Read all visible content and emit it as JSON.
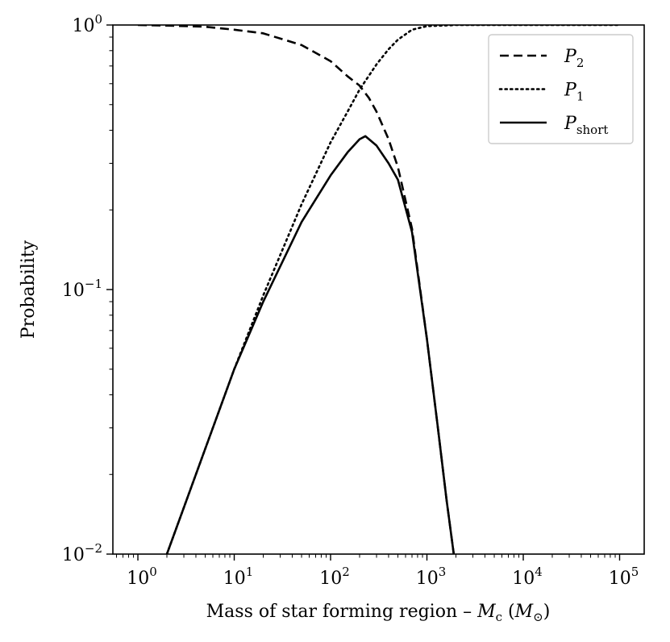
{
  "chart_data": {
    "type": "line",
    "title": "",
    "xlabel": "Mass of star forming region – Mc (M⊙)",
    "xlabel_parts": {
      "prefix": "Mass of star forming region – ",
      "symbol": "M",
      "symbol_sub": "c",
      "unit_open": " (",
      "unit_symbol": "M",
      "unit_sub": "⊙",
      "unit_close": ")"
    },
    "ylabel": "Probability",
    "xscale": "log",
    "yscale": "log",
    "xlim": [
      0.55,
      180000
    ],
    "ylim": [
      0.01,
      1
    ],
    "x_ticks": [
      {
        "value": 1,
        "base": "10",
        "exp": "0"
      },
      {
        "value": 10,
        "base": "10",
        "exp": "1"
      },
      {
        "value": 100,
        "base": "10",
        "exp": "2"
      },
      {
        "value": 1000,
        "base": "10",
        "exp": "3"
      },
      {
        "value": 10000,
        "base": "10",
        "exp": "4"
      },
      {
        "value": 100000,
        "base": "10",
        "exp": "5"
      }
    ],
    "y_ticks": [
      {
        "value": 0.01,
        "base": "10",
        "exp": "−2"
      },
      {
        "value": 0.1,
        "base": "10",
        "exp": "−1"
      },
      {
        "value": 1,
        "base": "10",
        "exp": "0"
      }
    ],
    "grid": false,
    "legend_position": "top-right",
    "series": [
      {
        "name": "P2",
        "label_base": "P",
        "label_sub": "2",
        "style": "dashed",
        "color": "#000000",
        "x": [
          1,
          2,
          5,
          10,
          20,
          50,
          100,
          150,
          200,
          250,
          300,
          400,
          500,
          700,
          1000,
          1300,
          1600,
          1900
        ],
        "y": [
          1.0,
          0.995,
          0.985,
          0.96,
          0.93,
          0.84,
          0.73,
          0.64,
          0.59,
          0.53,
          0.47,
          0.37,
          0.29,
          0.17,
          0.065,
          0.03,
          0.016,
          0.01
        ]
      },
      {
        "name": "P1",
        "label_base": "P",
        "label_sub": "1",
        "style": "dotted",
        "color": "#000000",
        "x": [
          2,
          5,
          10,
          20,
          50,
          100,
          150,
          200,
          300,
          400,
          500,
          700,
          1000,
          2000,
          10000,
          100000
        ],
        "y": [
          0.01,
          0.025,
          0.05,
          0.095,
          0.21,
          0.36,
          0.47,
          0.57,
          0.71,
          0.81,
          0.88,
          0.96,
          0.99,
          1.0,
          1.0,
          1.0
        ]
      },
      {
        "name": "Pshort",
        "label_base": "P",
        "label_sub": "short",
        "style": "solid",
        "color": "#000000",
        "x": [
          2,
          5,
          10,
          20,
          50,
          100,
          150,
          200,
          230,
          300,
          400,
          500,
          700,
          1000,
          1300,
          1600,
          1900
        ],
        "y": [
          0.01,
          0.025,
          0.05,
          0.09,
          0.18,
          0.27,
          0.33,
          0.37,
          0.38,
          0.35,
          0.3,
          0.26,
          0.165,
          0.065,
          0.03,
          0.016,
          0.01
        ]
      }
    ]
  }
}
